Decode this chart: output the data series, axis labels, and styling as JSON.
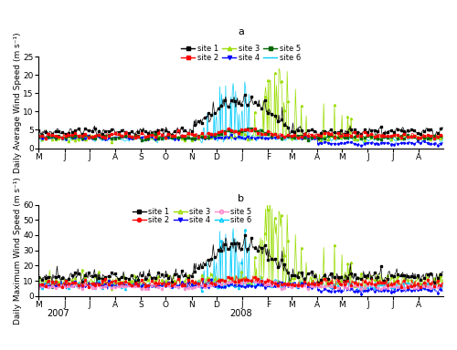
{
  "title_a": "a",
  "title_b": "b",
  "ylabel_a": "Daily Average Wind Speed (m s⁻¹)",
  "ylabel_b": "Daily Maximum Wind Speed (m s⁻¹)",
  "ylim_a": [
    0,
    25
  ],
  "ylim_b": [
    0,
    60
  ],
  "yticks_a": [
    0,
    5,
    10,
    15,
    20,
    25
  ],
  "yticks_b": [
    0,
    10,
    20,
    30,
    40,
    50,
    60
  ],
  "month_labels": [
    "M",
    "J",
    "J",
    "A",
    "S",
    "O",
    "N",
    "D",
    "J",
    "F",
    "M",
    "A",
    "M",
    "J",
    "J",
    "A"
  ],
  "month_ticks": [
    0,
    31,
    61,
    92,
    123,
    153,
    184,
    214,
    245,
    276,
    304,
    335,
    365,
    396,
    426,
    457
  ],
  "sites": [
    "site 1",
    "site 2",
    "site 3",
    "site 4",
    "site 5",
    "site 6"
  ],
  "colors_a": [
    "#000000",
    "#ff0000",
    "#99dd00",
    "#0000ff",
    "#006600",
    "#00ccff"
  ],
  "colors_b": [
    "#000000",
    "#ff0000",
    "#99dd00",
    "#0000ff",
    "#ff88cc",
    "#00ccff"
  ],
  "n_days": 488,
  "seed": 42
}
